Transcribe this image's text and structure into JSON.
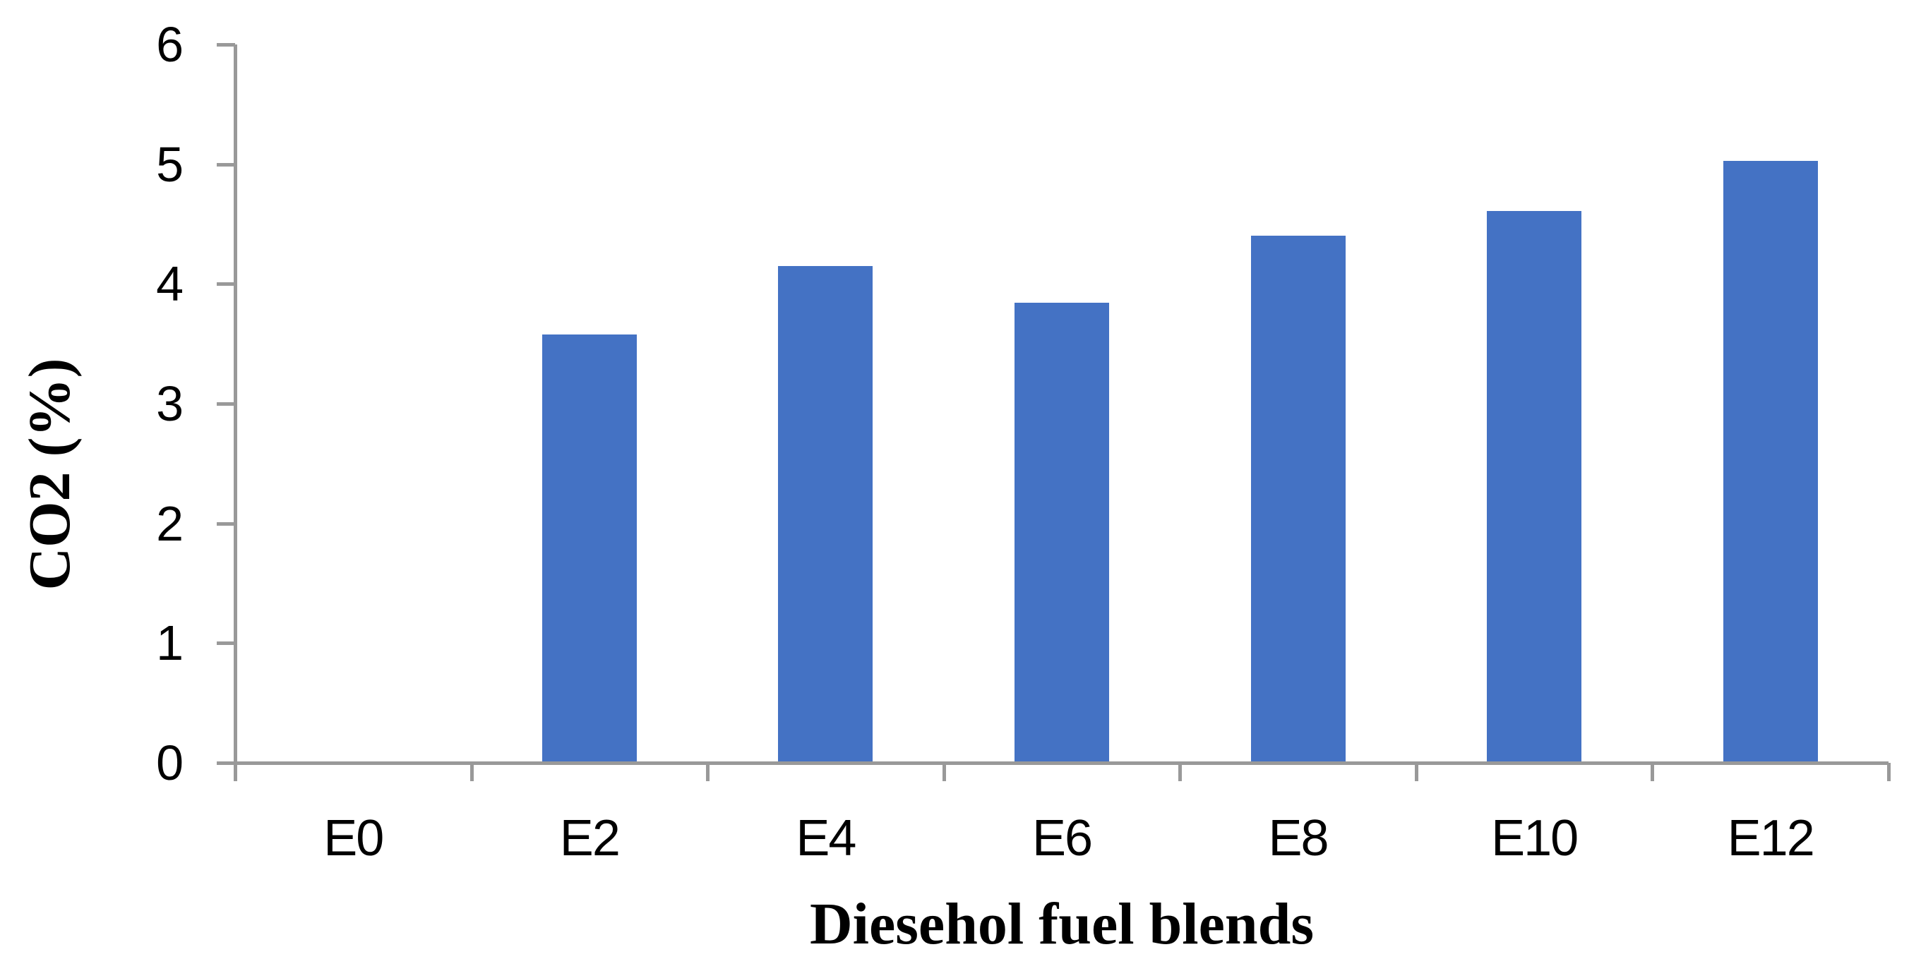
{
  "chart_data": {
    "type": "bar",
    "title": "",
    "xlabel": "Diesehol fuel blends",
    "ylabel": "CO2 (%)",
    "categories": [
      "E0",
      "E2",
      "E4",
      "E6",
      "E8",
      "E10",
      "E12"
    ],
    "values": [
      0,
      3.58,
      4.15,
      3.84,
      4.4,
      4.61,
      5.03
    ],
    "ylim": [
      0,
      6
    ],
    "yticks": [
      0,
      1,
      2,
      3,
      4,
      5,
      6
    ],
    "grid": false,
    "legend_position": "none",
    "bar_color": "#4472C4",
    "axis_color": "#999999",
    "text_color": "#000000"
  }
}
